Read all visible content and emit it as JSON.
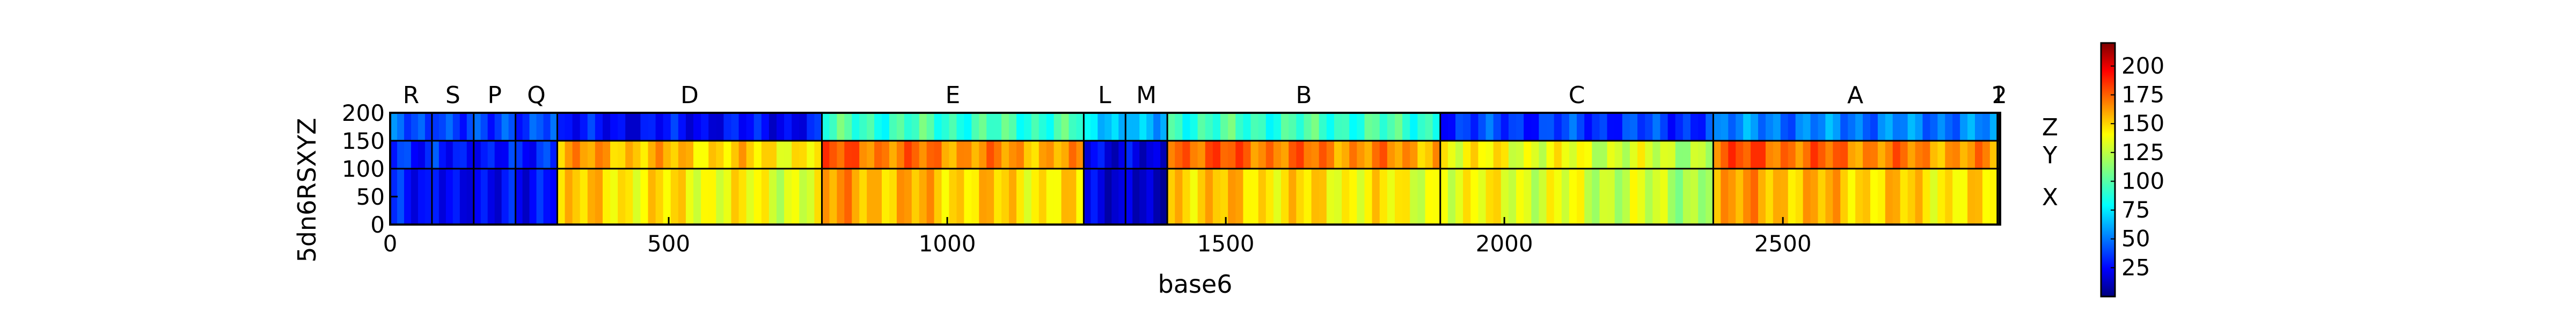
{
  "chart_data": {
    "type": "heatmap",
    "xlabel": "base6",
    "ylabel": "5dn6RSXYZ",
    "xlim": [
      0,
      2890
    ],
    "ylim": [
      0,
      200
    ],
    "x_ticks": [
      0,
      500,
      1000,
      1500,
      2000,
      2500
    ],
    "y_ticks": [
      0,
      50,
      100,
      150,
      200
    ],
    "colormap": "jet",
    "colorbar": {
      "min": 0,
      "max": 220,
      "ticks": [
        25,
        50,
        75,
        100,
        125,
        150,
        175,
        200
      ]
    },
    "top_segments": [
      {
        "label": "R",
        "start": 0,
        "end": 75
      },
      {
        "label": "S",
        "start": 75,
        "end": 150
      },
      {
        "label": "P",
        "start": 150,
        "end": 225
      },
      {
        "label": "Q",
        "start": 225,
        "end": 300
      },
      {
        "label": "D",
        "start": 300,
        "end": 775
      },
      {
        "label": "E",
        "start": 775,
        "end": 1245
      },
      {
        "label": "L",
        "start": 1245,
        "end": 1320
      },
      {
        "label": "M",
        "start": 1320,
        "end": 1395
      },
      {
        "label": "B",
        "start": 1395,
        "end": 1885
      },
      {
        "label": "C",
        "start": 1885,
        "end": 2375
      },
      {
        "label": "A",
        "start": 2375,
        "end": 2885
      },
      {
        "label": "1",
        "start": 2885,
        "end": 2888
      },
      {
        "label": "2",
        "start": 2888,
        "end": 2890
      }
    ],
    "right_segments": [
      {
        "label": "Z",
        "start": 150,
        "end": 200
      },
      {
        "label": "Y",
        "start": 100,
        "end": 150
      },
      {
        "label": "X",
        "start": 0,
        "end": 100
      }
    ],
    "block_values": {
      "Z": [
        45,
        45,
        45,
        45,
        28,
        95,
        70,
        70,
        95,
        40,
        55,
        40,
        40
      ],
      "Y": [
        35,
        35,
        35,
        35,
        158,
        172,
        22,
        22,
        175,
        140,
        175,
        120,
        120
      ],
      "X": [
        30,
        30,
        30,
        30,
        148,
        158,
        18,
        18,
        152,
        138,
        158,
        120,
        120
      ]
    }
  }
}
